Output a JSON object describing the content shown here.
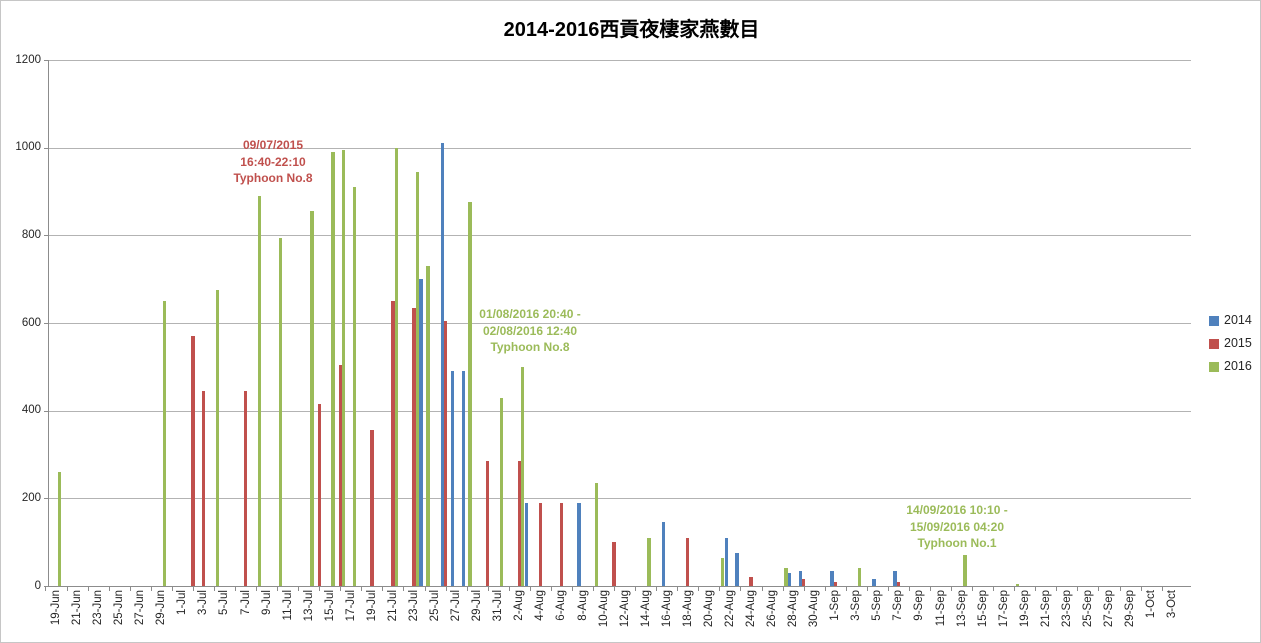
{
  "chart_data": {
    "type": "bar",
    "title": "2014-2016西貢夜棲家燕數目",
    "xlabel": "",
    "ylabel": "",
    "ylim": [
      0,
      1200
    ],
    "y_tick_labels": [
      "0",
      "200",
      "400",
      "600",
      "800",
      "1000",
      "1200"
    ],
    "grid": true,
    "legend_position": "right",
    "x_label_every": 2,
    "categories": [
      "19-Jun",
      "20-Jun",
      "21-Jun",
      "22-Jun",
      "23-Jun",
      "24-Jun",
      "25-Jun",
      "26-Jun",
      "27-Jun",
      "28-Jun",
      "29-Jun",
      "30-Jun",
      "1-Jul",
      "2-Jul",
      "3-Jul",
      "4-Jul",
      "5-Jul",
      "6-Jul",
      "7-Jul",
      "8-Jul",
      "9-Jul",
      "10-Jul",
      "11-Jul",
      "12-Jul",
      "13-Jul",
      "14-Jul",
      "15-Jul",
      "16-Jul",
      "17-Jul",
      "18-Jul",
      "19-Jul",
      "20-Jul",
      "21-Jul",
      "22-Jul",
      "23-Jul",
      "24-Jul",
      "25-Jul",
      "26-Jul",
      "27-Jul",
      "28-Jul",
      "29-Jul",
      "30-Jul",
      "31-Jul",
      "1-Aug",
      "2-Aug",
      "3-Aug",
      "4-Aug",
      "5-Aug",
      "6-Aug",
      "7-Aug",
      "8-Aug",
      "9-Aug",
      "10-Aug",
      "11-Aug",
      "12-Aug",
      "13-Aug",
      "14-Aug",
      "15-Aug",
      "16-Aug",
      "17-Aug",
      "18-Aug",
      "19-Aug",
      "20-Aug",
      "21-Aug",
      "22-Aug",
      "23-Aug",
      "24-Aug",
      "25-Aug",
      "26-Aug",
      "27-Aug",
      "28-Aug",
      "29-Aug",
      "30-Aug",
      "31-Aug",
      "1-Sep",
      "2-Sep",
      "3-Sep",
      "4-Sep",
      "5-Sep",
      "6-Sep",
      "7-Sep",
      "8-Sep",
      "9-Sep",
      "10-Sep",
      "11-Sep",
      "12-Sep",
      "13-Sep",
      "14-Sep",
      "15-Sep",
      "16-Sep",
      "17-Sep",
      "18-Sep",
      "19-Sep",
      "20-Sep",
      "21-Sep",
      "22-Sep",
      "23-Sep",
      "24-Sep",
      "25-Sep",
      "26-Sep",
      "27-Sep",
      "28-Sep",
      "29-Sep",
      "30-Sep",
      "1-Oct",
      "2-Oct",
      "3-Oct"
    ],
    "series": [
      {
        "name": "2014",
        "color": "#4F81BD",
        "points": {
          "24-Jul": 700,
          "26-Jul": 1010,
          "27-Jul": 490,
          "28-Jul": 490,
          "3-Aug": 190,
          "8-Aug": 190,
          "16-Aug": 145,
          "22-Aug": 110,
          "23-Aug": 75,
          "28-Aug": 30,
          "29-Aug": 35,
          "1-Sep": 35,
          "5-Sep": 15,
          "7-Sep": 35
        }
      },
      {
        "name": "2015",
        "color": "#C0504D",
        "points": {
          "2-Jul": 570,
          "3-Jul": 445,
          "7-Jul": 445,
          "14-Jul": 415,
          "16-Jul": 505,
          "19-Jul": 355,
          "21-Jul": 650,
          "23-Jul": 635,
          "26-Jul": 605,
          "30-Jul": 285,
          "2-Aug": 285,
          "4-Aug": 190,
          "6-Aug": 190,
          "11-Aug": 100,
          "18-Aug": 110,
          "24-Aug": 20,
          "29-Aug": 15,
          "1-Sep": 10,
          "7-Sep": 10
        }
      },
      {
        "name": "2016",
        "color": "#9BBB59",
        "points": {
          "19-Jun": 260,
          "29-Jun": 650,
          "4-Jul": 675,
          "8-Jul": 890,
          "10-Jul": 795,
          "13-Jul": 855,
          "15-Jul": 990,
          "16-Jul": 995,
          "17-Jul": 910,
          "21-Jul": 1000,
          "23-Jul": 945,
          "24-Jul": 730,
          "28-Jul": 875,
          "31-Jul": 430,
          "2-Aug": 500,
          "9-Aug": 235,
          "14-Aug": 110,
          "21-Aug": 65,
          "27-Aug": 40,
          "3-Sep": 40,
          "13-Sep": 70,
          "18-Sep": 5
        }
      }
    ],
    "annotations": [
      {
        "lines": [
          "09/07/2015",
          "16:40-22:10",
          "Typhoon No.8"
        ],
        "color": "#C0504D",
        "x": 272,
        "y": 136
      },
      {
        "lines": [
          "01/08/2016 20:40 -",
          "02/08/2016 12:40",
          "Typhoon No.8"
        ],
        "color": "#9BBB59",
        "x": 529,
        "y": 305
      },
      {
        "lines": [
          "14/09/2016 10:10 -",
          "15/09/2016 04:20",
          "Typhoon No.1"
        ],
        "color": "#9BBB59",
        "x": 956,
        "y": 501
      }
    ]
  }
}
